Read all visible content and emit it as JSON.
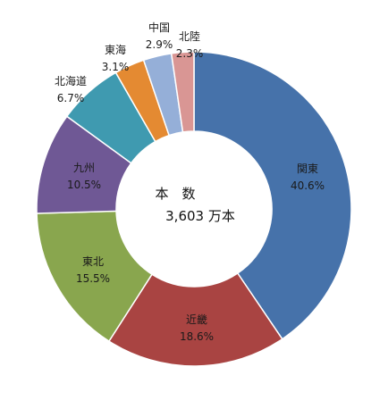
{
  "chart_data": {
    "type": "pie",
    "variant": "donut",
    "legend": "none",
    "center_text": {
      "line1": "本　数",
      "line2": "3,603 万本"
    },
    "slices": [
      {
        "name": "関東",
        "value": 40.6,
        "label": "40.6%",
        "color": "#4672AA"
      },
      {
        "name": "近畿",
        "value": 18.6,
        "label": "18.6%",
        "color": "#A94442"
      },
      {
        "name": "東北",
        "value": 15.5,
        "label": "15.5%",
        "color": "#89A64E"
      },
      {
        "name": "九州",
        "value": 10.5,
        "label": "10.5%",
        "color": "#6F5895"
      },
      {
        "name": "北海道",
        "value": 6.7,
        "label": "6.7%",
        "color": "#3F9AB0"
      },
      {
        "name": "東海",
        "value": 3.1,
        "label": "3.1%",
        "color": "#E48A32"
      },
      {
        "name": "中国",
        "value": 2.9,
        "label": "2.9%",
        "color": "#95AFD8"
      },
      {
        "name": "北陸",
        "value": 2.3,
        "label": "2.3%",
        "color": "#D99694"
      }
    ]
  }
}
